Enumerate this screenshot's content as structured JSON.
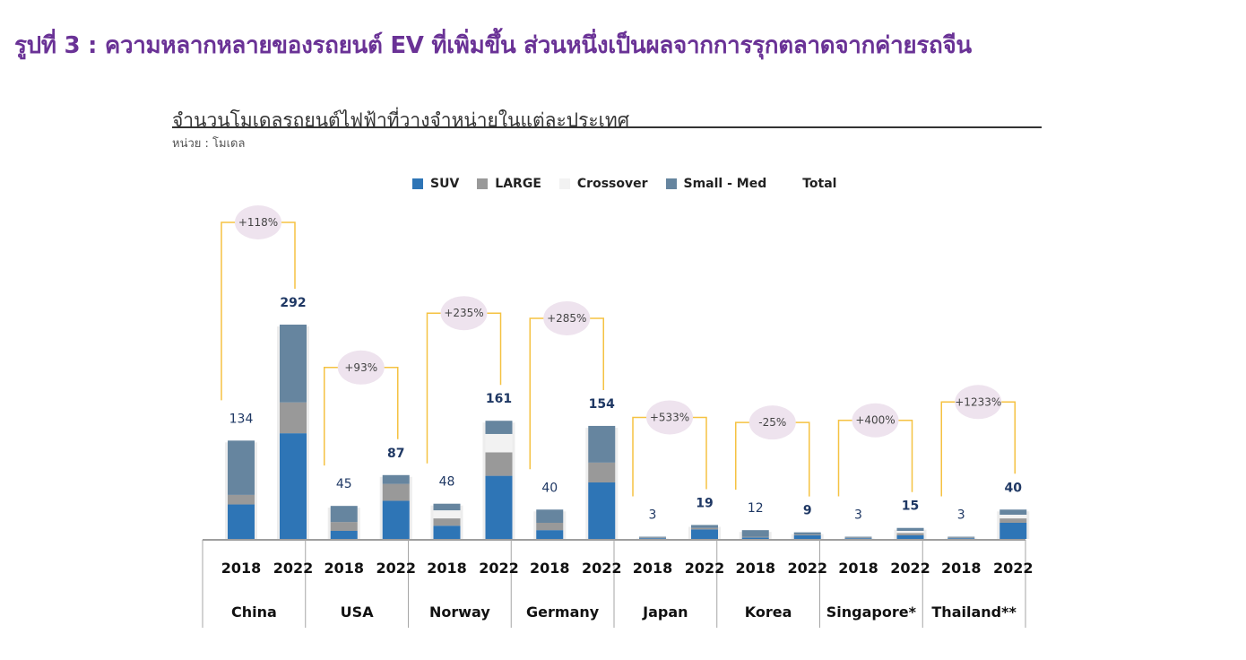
{
  "page": {
    "title": "รูปที่ 3 : ความหลากหลายของรถยนต์ EV ที่เพิ่มขึ้น ส่วนหนึ่งเป็นผลจากการรุกตลาดจากค่ายรถจีน"
  },
  "chart_data": {
    "type": "bar",
    "title": "จำนวนโมเดลรถยนต์ไฟฟ้าที่วางจำหน่ายในแต่ละประเทศ",
    "subtitle": "หน่วย : โมเดล",
    "stacked": true,
    "legend": [
      {
        "name": "SUV",
        "color": "#2e75b6"
      },
      {
        "name": "LARGE",
        "color": "#999999"
      },
      {
        "name": "Crossover",
        "color": "#f2f2f2"
      },
      {
        "name": "Small - Med",
        "color": "#66859f"
      },
      {
        "name": "Total",
        "color": ""
      }
    ],
    "legend_position": "top",
    "ylim": [
      0,
      320
    ],
    "colors": {
      "suv": "#2e75b6",
      "large": "#999999",
      "crossover": "#f2f2f2",
      "small_med": "#66859f",
      "bracket": "#f5c242",
      "bubble": "#eee3ee",
      "value_2018": "#1f3864",
      "value_2022": "#1f3864"
    },
    "groups": [
      {
        "country": "China",
        "change": "+118%",
        "bars": [
          {
            "year": "2018",
            "total": 134,
            "suv": 47,
            "large": 13,
            "crossover": 0,
            "small_med": 74
          },
          {
            "year": "2022",
            "total": 292,
            "suv": 144,
            "large": 42,
            "crossover": 0,
            "small_med": 106
          }
        ]
      },
      {
        "country": "USA",
        "change": "+93%",
        "bars": [
          {
            "year": "2018",
            "total": 45,
            "suv": 11,
            "large": 12,
            "crossover": 0,
            "small_med": 22
          },
          {
            "year": "2022",
            "total": 87,
            "suv": 52,
            "large": 23,
            "crossover": 0,
            "small_med": 12
          }
        ]
      },
      {
        "country": "Norway",
        "change": "+235%",
        "bars": [
          {
            "year": "2018",
            "total": 48,
            "suv": 18,
            "large": 10,
            "crossover": 11,
            "small_med": 9
          },
          {
            "year": "2022",
            "total": 161,
            "suv": 86,
            "large": 32,
            "crossover": 25,
            "small_med": 18
          }
        ]
      },
      {
        "country": "Germany",
        "change": "+285%",
        "bars": [
          {
            "year": "2018",
            "total": 40,
            "suv": 12,
            "large": 10,
            "crossover": 0,
            "small_med": 18
          },
          {
            "year": "2022",
            "total": 154,
            "suv": 77,
            "large": 27,
            "crossover": 0,
            "small_med": 50
          }
        ]
      },
      {
        "country": "Japan",
        "change": "+533%",
        "bars": [
          {
            "year": "2018",
            "total": 3,
            "suv": 1,
            "large": 1,
            "crossover": 0,
            "small_med": 1
          },
          {
            "year": "2022",
            "total": 19,
            "suv": 13,
            "large": 2,
            "crossover": 0,
            "small_med": 4
          }
        ]
      },
      {
        "country": "Korea",
        "change": "-25%",
        "bars": [
          {
            "year": "2018",
            "total": 12,
            "suv": 2,
            "large": 1,
            "crossover": 0,
            "small_med": 9
          },
          {
            "year": "2022",
            "total": 9,
            "suv": 5,
            "large": 1,
            "crossover": 0,
            "small_med": 3
          }
        ]
      },
      {
        "country": "Singapore*",
        "change": "+400%",
        "bars": [
          {
            "year": "2018",
            "total": 3,
            "suv": 1,
            "large": 1,
            "crossover": 0,
            "small_med": 1
          },
          {
            "year": "2022",
            "total": 15,
            "suv": 5,
            "large": 3,
            "crossover": 3,
            "small_med": 4
          }
        ]
      },
      {
        "country": "Thailand**",
        "change": "+1233%",
        "bars": [
          {
            "year": "2018",
            "total": 3,
            "suv": 1,
            "large": 1,
            "crossover": 0,
            "small_med": 1
          },
          {
            "year": "2022",
            "total": 40,
            "suv": 22,
            "large": 6,
            "crossover": 5,
            "small_med": 7
          }
        ]
      }
    ]
  }
}
